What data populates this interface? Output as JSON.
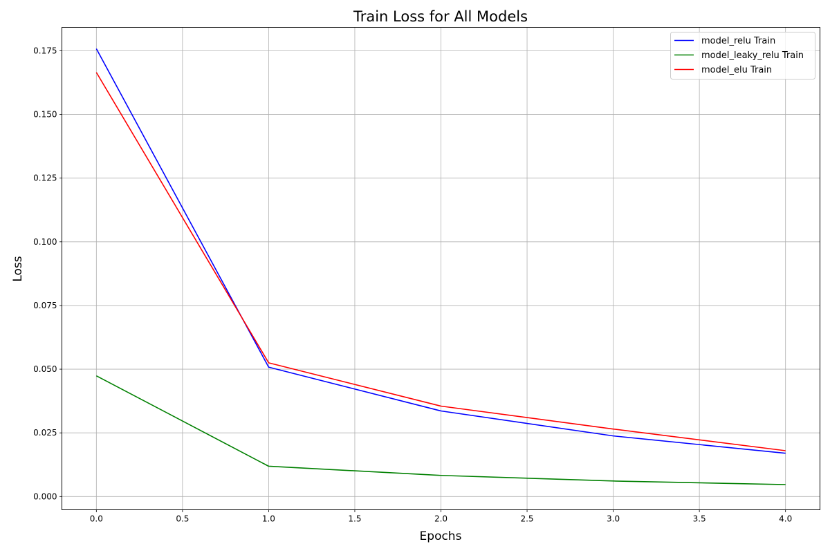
{
  "chart_data": {
    "type": "line",
    "title": "Train Loss for All Models",
    "xlabel": "Epochs",
    "ylabel": "Loss",
    "x": [
      0,
      1,
      2,
      3,
      4
    ],
    "xlim": [
      -0.2,
      4.2
    ],
    "ylim": [
      -0.0052,
      0.1842
    ],
    "xticks": [
      "0.0",
      "0.5",
      "1.0",
      "1.5",
      "2.0",
      "2.5",
      "3.0",
      "3.5",
      "4.0"
    ],
    "yticks": [
      "0.000",
      "0.025",
      "0.050",
      "0.075",
      "0.100",
      "0.125",
      "0.150",
      "0.175"
    ],
    "grid": true,
    "legend_position": "top-right",
    "series": [
      {
        "name": "model_relu Train",
        "color": "#0000ff",
        "values": [
          0.1758,
          0.0508,
          0.0336,
          0.0238,
          0.017
        ]
      },
      {
        "name": "model_leaky_relu Train",
        "color": "#008000",
        "values": [
          0.0474,
          0.0119,
          0.0083,
          0.0061,
          0.0047
        ]
      },
      {
        "name": "model_elu Train",
        "color": "#ff0000",
        "values": [
          0.1665,
          0.0525,
          0.0355,
          0.0265,
          0.018
        ]
      }
    ]
  }
}
